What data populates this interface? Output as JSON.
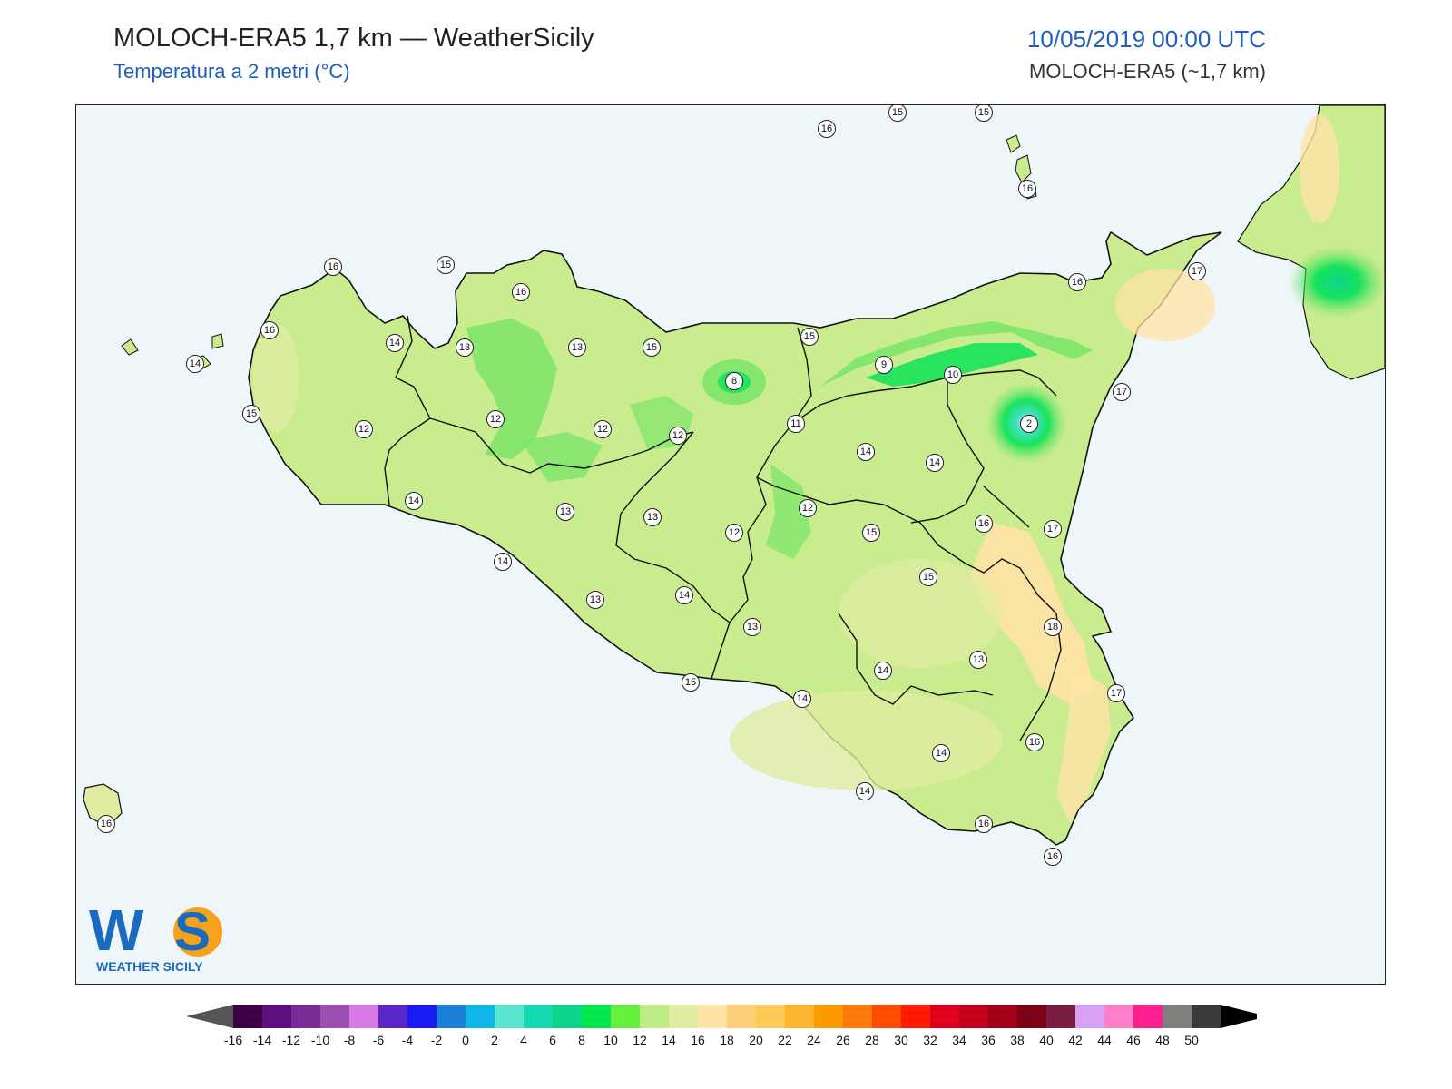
{
  "header": {
    "title": "MOLOCH-ERA5 1,7 km — WeatherSicily",
    "subtitle": "Temperatura a 2 metri (°C)",
    "datetime": "10/05/2019 00:00 UTC",
    "model": "MOLOCH-ERA5 (~1,7 km)"
  },
  "logo": {
    "letters": "WS",
    "text": "WEATHER SICILY"
  },
  "colors": {
    "sea": "#eef6fa",
    "land_base": "#c9ec8f",
    "warm": "#ffe3a6",
    "green": "#7de56a",
    "bright_green": "#18e35b",
    "cold_core": "#3fe0c0"
  },
  "colorbar": {
    "labels": [
      "-16",
      "-14",
      "-12",
      "-10",
      "-8",
      "-6",
      "-4",
      "-2",
      "0",
      "2",
      "4",
      "6",
      "8",
      "10",
      "12",
      "14",
      "16",
      "18",
      "20",
      "22",
      "24",
      "26",
      "28",
      "30",
      "32",
      "34",
      "36",
      "38",
      "40",
      "42",
      "44",
      "46",
      "48",
      "50"
    ],
    "colors": [
      "#3d0047",
      "#5d0f7f",
      "#7a2b95",
      "#9b4fb2",
      "#d87ae6",
      "#5a28c8",
      "#1b1bf5",
      "#1c7fd6",
      "#0db8e8",
      "#5be6d0",
      "#14d9b2",
      "#0bd58a",
      "#00e84d",
      "#67ef3d",
      "#bdeb86",
      "#e0eca0",
      "#ffe3a6",
      "#ffcf78",
      "#ffc857",
      "#ffb52e",
      "#ff9a00",
      "#ff7a0a",
      "#ff4d00",
      "#ff1a00",
      "#e0001e",
      "#c4001b",
      "#a30016",
      "#7d0014",
      "#7a1d43",
      "#d8a1f5",
      "#ff7fc9",
      "#ff1e8e",
      "#7f7f7f",
      "#3a3a3a"
    ]
  },
  "stations": [
    {
      "v": "16"
    },
    {
      "v": "15"
    },
    {
      "v": "15"
    },
    {
      "v": "16"
    },
    {
      "v": "16"
    },
    {
      "v": "15"
    },
    {
      "v": "16"
    },
    {
      "v": "17"
    },
    {
      "v": "16"
    },
    {
      "v": "14"
    },
    {
      "v": "16"
    },
    {
      "v": "14"
    },
    {
      "v": "13"
    },
    {
      "v": "13"
    },
    {
      "v": "15"
    },
    {
      "v": "15"
    },
    {
      "v": "8"
    },
    {
      "v": "9"
    },
    {
      "v": "10"
    },
    {
      "v": "17"
    },
    {
      "v": "15"
    },
    {
      "v": "12"
    },
    {
      "v": "12"
    },
    {
      "v": "12"
    },
    {
      "v": "12"
    },
    {
      "v": "11"
    },
    {
      "v": "2"
    },
    {
      "v": "14"
    },
    {
      "v": "14"
    },
    {
      "v": "15"
    },
    {
      "v": "14"
    },
    {
      "v": "13"
    },
    {
      "v": "13"
    },
    {
      "v": "12"
    },
    {
      "v": "12"
    },
    {
      "v": "16"
    },
    {
      "v": "17"
    },
    {
      "v": "15"
    },
    {
      "v": "14"
    },
    {
      "v": "14"
    },
    {
      "v": "13"
    },
    {
      "v": "18"
    },
    {
      "v": "13"
    },
    {
      "v": "13"
    },
    {
      "v": "14"
    },
    {
      "v": "15"
    },
    {
      "v": "14"
    },
    {
      "v": "17"
    },
    {
      "v": "14"
    },
    {
      "v": "16"
    },
    {
      "v": "14"
    },
    {
      "v": "16"
    },
    {
      "v": "16"
    },
    {
      "v": "16"
    }
  ]
}
